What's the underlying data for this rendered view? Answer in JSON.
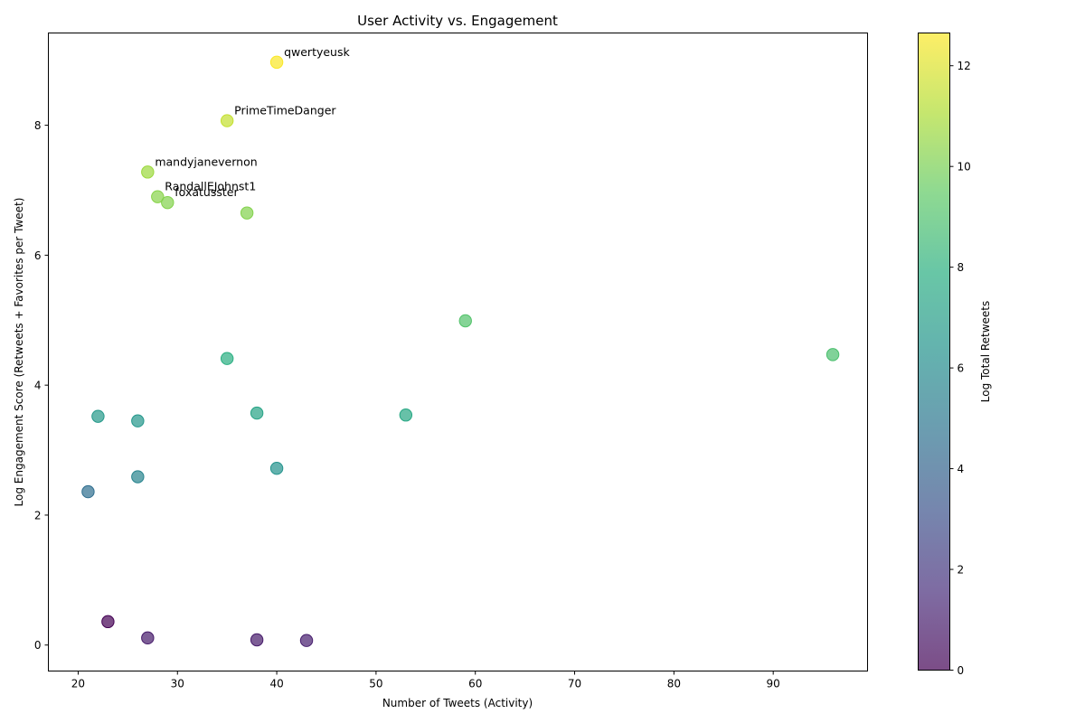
{
  "chart_data": {
    "type": "scatter",
    "title": "User Activity vs. Engagement",
    "xlabel": "Number of Tweets (Activity)",
    "ylabel": "Log Engagement Score (Retweets + Favorites per Tweet)",
    "xlim": [
      17,
      99.5
    ],
    "ylim": [
      -0.4,
      9.42
    ],
    "xticks": [
      20,
      30,
      40,
      50,
      60,
      70,
      80,
      90
    ],
    "yticks": [
      0,
      2,
      4,
      6,
      8
    ],
    "grid": false,
    "colormap": "viridis",
    "marker_alpha": 0.7,
    "colorbar": {
      "label": "Log Total Retweets",
      "range": [
        0,
        12.65
      ],
      "ticks": [
        0,
        2,
        4,
        6,
        8,
        10,
        12
      ]
    },
    "points": [
      {
        "x": 40,
        "y": 8.97,
        "c": 12.6,
        "label": "qwertyeusk"
      },
      {
        "x": 35,
        "y": 8.07,
        "c": 11.5,
        "label": "PrimeTimeDanger"
      },
      {
        "x": 27,
        "y": 7.28,
        "c": 10.7,
        "label": "mandyjanevernon"
      },
      {
        "x": 28,
        "y": 6.9,
        "c": 10.3,
        "label": "RandallEJohnst1"
      },
      {
        "x": 29,
        "y": 6.81,
        "c": 10.2,
        "label": "foxatusster"
      },
      {
        "x": 37,
        "y": 6.65,
        "c": 10.2,
        "label": ""
      },
      {
        "x": 59,
        "y": 4.99,
        "c": 9.1,
        "label": ""
      },
      {
        "x": 96,
        "y": 4.47,
        "c": 8.9,
        "label": ""
      },
      {
        "x": 35,
        "y": 4.41,
        "c": 7.9,
        "label": ""
      },
      {
        "x": 38,
        "y": 3.57,
        "c": 7.3,
        "label": ""
      },
      {
        "x": 53,
        "y": 3.54,
        "c": 7.5,
        "label": ""
      },
      {
        "x": 22,
        "y": 3.52,
        "c": 6.7,
        "label": ""
      },
      {
        "x": 26,
        "y": 3.45,
        "c": 6.6,
        "label": ""
      },
      {
        "x": 40,
        "y": 2.72,
        "c": 6.4,
        "label": ""
      },
      {
        "x": 26,
        "y": 2.59,
        "c": 5.6,
        "label": ""
      },
      {
        "x": 21,
        "y": 2.36,
        "c": 4.5,
        "label": ""
      },
      {
        "x": 23,
        "y": 0.36,
        "c": 0.0,
        "label": ""
      },
      {
        "x": 27,
        "y": 0.11,
        "c": 0.9,
        "label": ""
      },
      {
        "x": 38,
        "y": 0.08,
        "c": 0.9,
        "label": ""
      },
      {
        "x": 43,
        "y": 0.07,
        "c": 1.0,
        "label": ""
      }
    ]
  }
}
